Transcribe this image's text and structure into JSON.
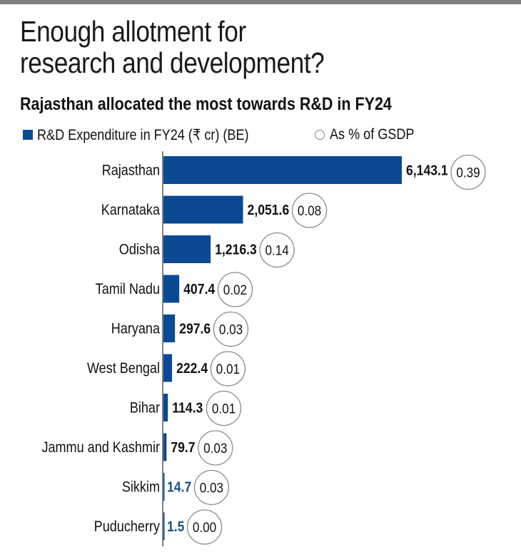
{
  "header": {
    "title_line1": "Enough allotment for",
    "title_line2": "research and development?"
  },
  "colors": {
    "bar": "#0b4a92",
    "circle_stroke": "#8a8a8a",
    "small_value_text": "#1a4f86",
    "top_band": "#808080"
  },
  "chart_data": {
    "type": "bar",
    "orientation": "horizontal",
    "title": "Rajasthan allocated the most towards R&D in FY24",
    "legend": [
      {
        "name": "R&D Expenditure in FY24 (₹ cr) (BE)",
        "marker": "square"
      },
      {
        "name": "As % of GSDP",
        "marker": "circle"
      }
    ],
    "legend_position": "top-left",
    "categories": [
      "Rajasthan",
      "Karnataka",
      "Odisha",
      "Tamil Nadu",
      "Haryana",
      "West Bengal",
      "Bihar",
      "Jammu and Kashmir",
      "Sikkim",
      "Puducherry"
    ],
    "series": [
      {
        "name": "R&D Expenditure in FY24 (₹ cr) (BE)",
        "values": [
          6143.1,
          2051.6,
          1216.3,
          407.4,
          297.6,
          222.4,
          114.3,
          79.7,
          14.7,
          1.5
        ],
        "labels": [
          "6,143.1",
          "2,051.6",
          "1,216.3",
          "407.4",
          "297.6",
          "222.4",
          "114.3",
          "79.7",
          "14.7",
          "1.5"
        ]
      },
      {
        "name": "As % of GSDP",
        "values": [
          0.39,
          0.08,
          0.14,
          0.02,
          0.03,
          0.01,
          0.01,
          0.03,
          0.03,
          0.0
        ],
        "labels": [
          "0.39",
          "0.08",
          "0.14",
          "0.02",
          "0.03",
          "0.01",
          "0.01",
          "0.03",
          "0.03",
          "0.00"
        ]
      }
    ],
    "xlabel": "",
    "ylabel": "",
    "xlim": [
      0,
      6143.1
    ],
    "grid": false
  }
}
